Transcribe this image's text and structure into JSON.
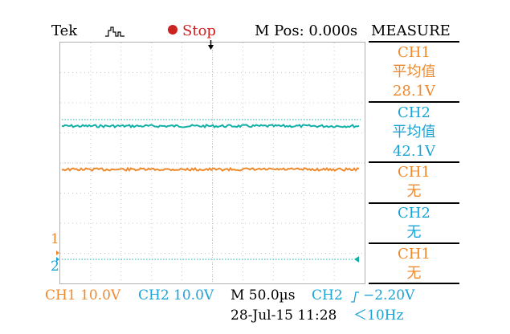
{
  "header": {
    "brand": "Tek",
    "state": "Stop",
    "mpos": "M Pos: 0.000s"
  },
  "measure": {
    "title": "MEASURE",
    "items": [
      {
        "channel": "CH1",
        "type": "平均值",
        "value": "28.1V"
      },
      {
        "channel": "CH2",
        "type": "平均值",
        "value": "42.1V"
      },
      {
        "channel": "CH1",
        "type": "无"
      },
      {
        "channel": "CH2",
        "type": "无"
      },
      {
        "channel": "CH1",
        "type": "无"
      }
    ]
  },
  "markers": {
    "ch1": "1",
    "ch2": "2"
  },
  "footer": {
    "ch1_scale": "CH1 10.0V",
    "ch2_scale": "CH2 10.0V",
    "timebase": "M 50.0µs",
    "trigger_source": "CH2",
    "trigger_level": "−2.20V",
    "datetime": "28-Jul-15 11:28",
    "frequency": "＜10Hz"
  },
  "colors": {
    "ch1": "#ee8a2e",
    "ch2": "#1aa3d6",
    "ch2_trace": "#14b0a8",
    "stop": "#cc2222"
  }
}
